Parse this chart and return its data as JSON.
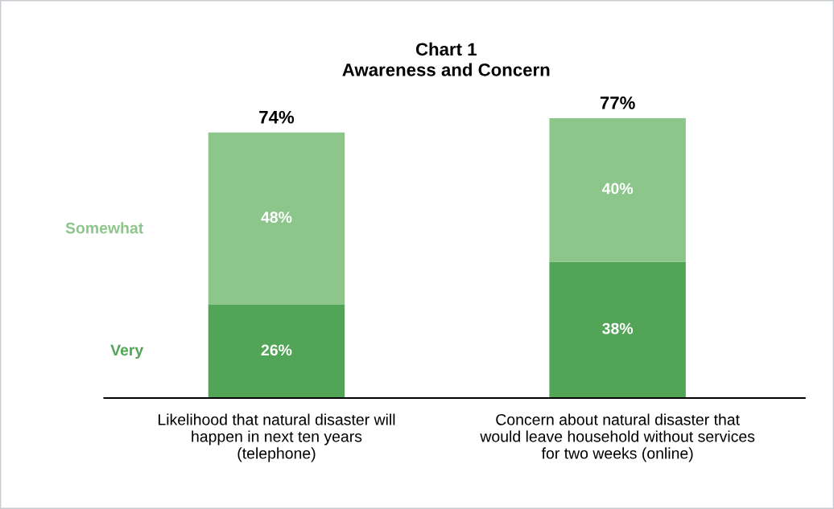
{
  "chart_data": {
    "type": "bar",
    "title": "Chart 1\nAwareness and Concern",
    "stacked": true,
    "categories": [
      "Likelihood that natural disaster will\nhappen in next ten years\n(telephone)",
      "Concern about natural disaster that\nwould leave household without services\nfor two weeks (online)"
    ],
    "series": [
      {
        "name": "Very",
        "color": "#52a456",
        "values": [
          26,
          38
        ],
        "value_labels": [
          "26%",
          "38%"
        ]
      },
      {
        "name": "Somewhat",
        "color": "#8dc68a",
        "values": [
          48,
          40
        ],
        "value_labels": [
          "48%",
          "40%"
        ]
      }
    ],
    "totals": [
      "74%",
      "77%"
    ],
    "legend": "left",
    "grid": false
  }
}
